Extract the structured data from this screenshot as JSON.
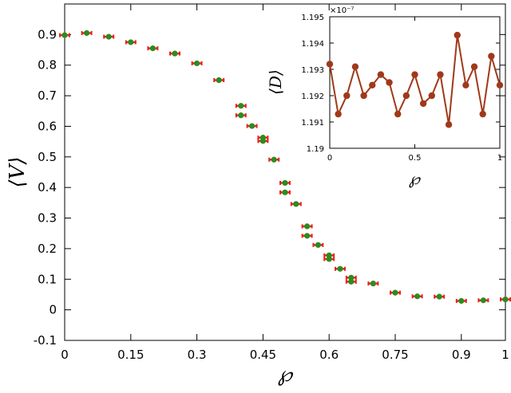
{
  "chart_data": [
    {
      "type": "scatter",
      "xlabel": "℘",
      "ylabel": "⟨V⟩",
      "xlim": [
        0,
        1
      ],
      "ylim": [
        -0.1,
        1.0
      ],
      "x_ticks": [
        "0",
        "0.15",
        "0.3",
        "0.45",
        "0.6",
        "0.75",
        "0.9",
        "1"
      ],
      "x_tick_values": [
        0,
        0.15,
        0.3,
        0.45,
        0.6,
        0.75,
        0.9,
        1.0
      ],
      "y_ticks": [
        "-0.1",
        "0",
        "0.1",
        "0.2",
        "0.3",
        "0.4",
        "0.5",
        "0.6",
        "0.7",
        "0.8",
        "0.9"
      ],
      "y_tick_values": [
        -0.1,
        0,
        0.1,
        0.2,
        0.3,
        0.4,
        0.5,
        0.6,
        0.7,
        0.8,
        0.9
      ],
      "marker_color": "#2e8b1e",
      "errorbar_color": "#e8231e",
      "points": [
        {
          "x": 0.0,
          "y": 0.898
        },
        {
          "x": 0.05,
          "y": 0.905
        },
        {
          "x": 0.1,
          "y": 0.893
        },
        {
          "x": 0.15,
          "y": 0.875
        },
        {
          "x": 0.2,
          "y": 0.855
        },
        {
          "x": 0.25,
          "y": 0.838
        },
        {
          "x": 0.3,
          "y": 0.806
        },
        {
          "x": 0.35,
          "y": 0.751
        },
        {
          "x": 0.4,
          "y": 0.667
        },
        {
          "x": 0.4,
          "y": 0.636
        },
        {
          "x": 0.425,
          "y": 0.601
        },
        {
          "x": 0.45,
          "y": 0.563
        },
        {
          "x": 0.45,
          "y": 0.552
        },
        {
          "x": 0.475,
          "y": 0.491
        },
        {
          "x": 0.5,
          "y": 0.415
        },
        {
          "x": 0.5,
          "y": 0.384
        },
        {
          "x": 0.525,
          "y": 0.346
        },
        {
          "x": 0.55,
          "y": 0.273
        },
        {
          "x": 0.55,
          "y": 0.242
        },
        {
          "x": 0.575,
          "y": 0.212
        },
        {
          "x": 0.6,
          "y": 0.178
        },
        {
          "x": 0.6,
          "y": 0.166
        },
        {
          "x": 0.625,
          "y": 0.134
        },
        {
          "x": 0.65,
          "y": 0.105
        },
        {
          "x": 0.65,
          "y": 0.092
        },
        {
          "x": 0.7,
          "y": 0.086
        },
        {
          "x": 0.75,
          "y": 0.056
        },
        {
          "x": 0.8,
          "y": 0.044
        },
        {
          "x": 0.85,
          "y": 0.043
        },
        {
          "x": 0.9,
          "y": 0.029
        },
        {
          "x": 0.95,
          "y": 0.031
        },
        {
          "x": 1.0,
          "y": 0.034
        }
      ]
    },
    {
      "type": "line",
      "xlabel": "℘",
      "ylabel": "⟨D⟩",
      "xlim": [
        0,
        1
      ],
      "ylim": [
        1.19,
        1.195
      ],
      "y_multiplier": "×10⁻⁷",
      "x_ticks": [
        "0",
        "0.5",
        "1"
      ],
      "x_tick_values": [
        0,
        0.5,
        1.0
      ],
      "y_ticks": [
        "1.19",
        "1.191",
        "1.192",
        "1.193",
        "1.194",
        "1.195"
      ],
      "y_tick_values": [
        1.19,
        1.191,
        1.192,
        1.193,
        1.194,
        1.195
      ],
      "line_color": "#a0391a",
      "x": [
        0.0,
        0.05,
        0.1,
        0.15,
        0.2,
        0.25,
        0.3,
        0.35,
        0.4,
        0.45,
        0.5,
        0.55,
        0.6,
        0.65,
        0.7,
        0.75,
        0.8,
        0.85,
        0.9,
        0.95,
        1.0
      ],
      "y": [
        1.1932,
        1.1913,
        1.192,
        1.1931,
        1.192,
        1.1924,
        1.1928,
        1.1925,
        1.1913,
        1.192,
        1.1928,
        1.1917,
        1.192,
        1.1928,
        1.1909,
        1.1943,
        1.1924,
        1.1931,
        1.1913,
        1.1935,
        1.1924
      ]
    }
  ]
}
